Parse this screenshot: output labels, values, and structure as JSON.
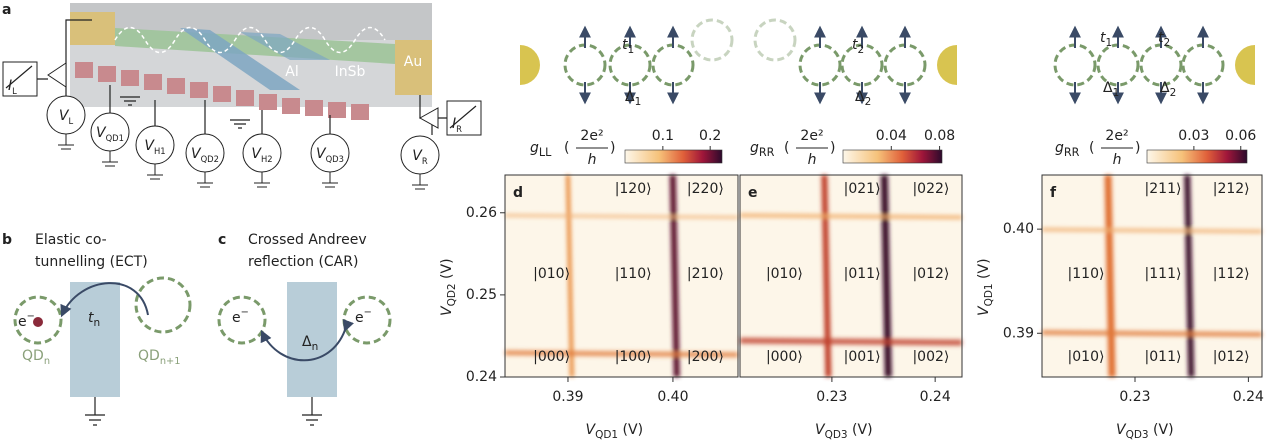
{
  "panel_a": {
    "letter": "a",
    "materials": [
      "Al",
      "InSb",
      "Au"
    ],
    "meters": [
      {
        "t": "I",
        "sub": "L"
      },
      {
        "t": "I",
        "sub": "R"
      }
    ],
    "sources": [
      {
        "t": "V",
        "sub": "L"
      },
      {
        "t": "V",
        "sub": "QD1"
      },
      {
        "t": "V",
        "sub": "H1"
      },
      {
        "t": "V",
        "sub": "QD2"
      },
      {
        "t": "V",
        "sub": "H2"
      },
      {
        "t": "V",
        "sub": "QD3"
      },
      {
        "t": "V",
        "sub": "R"
      }
    ]
  },
  "panel_b": {
    "letter": "b",
    "title": [
      "Elastic co-",
      "tunnelling (ECT)"
    ],
    "electron": {
      "t": "e",
      "sup": "−"
    },
    "hopping": {
      "t": "t",
      "sub": "n"
    },
    "dots": [
      {
        "t": "QD",
        "sub": "n"
      },
      {
        "t": "QD",
        "sub": "n+1"
      }
    ]
  },
  "panel_c": {
    "letter": "c",
    "title": [
      "Crossed Andreev",
      "reflection (CAR)"
    ],
    "electrons": [
      {
        "t": "e",
        "sup": "−"
      },
      {
        "t": "e",
        "sup": "−"
      }
    ],
    "pairing": {
      "t": "Δ",
      "sub": "n"
    }
  },
  "maps": [
    {
      "letter": "d",
      "diagram_labels": [
        {
          "t": "t",
          "sub": "1"
        },
        {
          "t": "Δ",
          "sub": "1"
        }
      ],
      "colorbar": {
        "symbol": {
          "t": "g",
          "sub": "LL"
        },
        "numerator": "2e²",
        "denominator": "h",
        "lim": [
          0.02,
          0.225
        ],
        "ticks": [
          0.1,
          0.2
        ]
      },
      "xlabel": {
        "t": "V",
        "sub": "QD1",
        "unit": " (V)"
      },
      "xlim": [
        0.384,
        0.4062
      ],
      "xticks": [
        0.39,
        {
          "value": 0.4,
          "label": "0.40"
        }
      ],
      "ylabel": {
        "t": "V",
        "sub": "QD2",
        "unit": " (V)"
      },
      "ylim": [
        0.24,
        0.2646
      ],
      "yticks": [
        0.24,
        0.25,
        0.26
      ],
      "states": [
        [
          "|120⟩",
          "|220⟩"
        ],
        [
          "|010⟩",
          "|110⟩",
          "|210⟩"
        ],
        [
          "|000⟩",
          "|100⟩",
          "|200⟩"
        ]
      ]
    },
    {
      "letter": "e",
      "diagram_labels": [
        {
          "t": "t",
          "sub": "2"
        },
        {
          "t": "Δ",
          "sub": "2"
        }
      ],
      "colorbar": {
        "symbol": {
          "t": "g",
          "sub": "RR"
        },
        "numerator": "2e²",
        "denominator": "h",
        "lim": [
          0,
          0.082
        ],
        "ticks": [
          0.04,
          0.08
        ]
      },
      "xlabel": {
        "t": "V",
        "sub": "QD3",
        "unit": " (V)"
      },
      "xlim": [
        0.2211,
        0.2426
      ],
      "xticks": [
        0.23,
        0.24
      ],
      "states": [
        [
          "|021⟩",
          "|022⟩"
        ],
        [
          "|010⟩",
          "|011⟩",
          "|012⟩"
        ],
        [
          "|000⟩",
          "|001⟩",
          "|002⟩"
        ]
      ]
    },
    {
      "letter": "f",
      "diagram_labels": [
        {
          "t": "t",
          "sub": "1"
        },
        {
          "t": "Δ",
          "sub": "1"
        },
        {
          "t": "t",
          "sub": "2"
        },
        {
          "t": "Δ",
          "sub": "2"
        }
      ],
      "colorbar": {
        "symbol": {
          "t": "g",
          "sub": "RR"
        },
        "numerator": "2e²",
        "denominator": "h",
        "lim": [
          0,
          0.064
        ],
        "ticks": [
          0.03,
          0.06
        ]
      },
      "xlabel": {
        "t": "V",
        "sub": "QD3",
        "unit": " (V)"
      },
      "xlim": [
        0.2218,
        0.2412
      ],
      "xticks": [
        0.23,
        0.24
      ],
      "ylabel": {
        "t": "V",
        "sub": "QD1",
        "unit": " (V)"
      },
      "ylim": [
        0.3858,
        0.4052
      ],
      "yticks": [
        0.39,
        {
          "value": 0.4,
          "label": "0.40"
        }
      ],
      "states": [
        [
          "|211⟩",
          "|212⟩"
        ],
        [
          "|110⟩",
          "|111⟩",
          "|112⟩"
        ],
        [
          "|010⟩",
          "|011⟩",
          "|012⟩"
        ]
      ]
    }
  ]
}
